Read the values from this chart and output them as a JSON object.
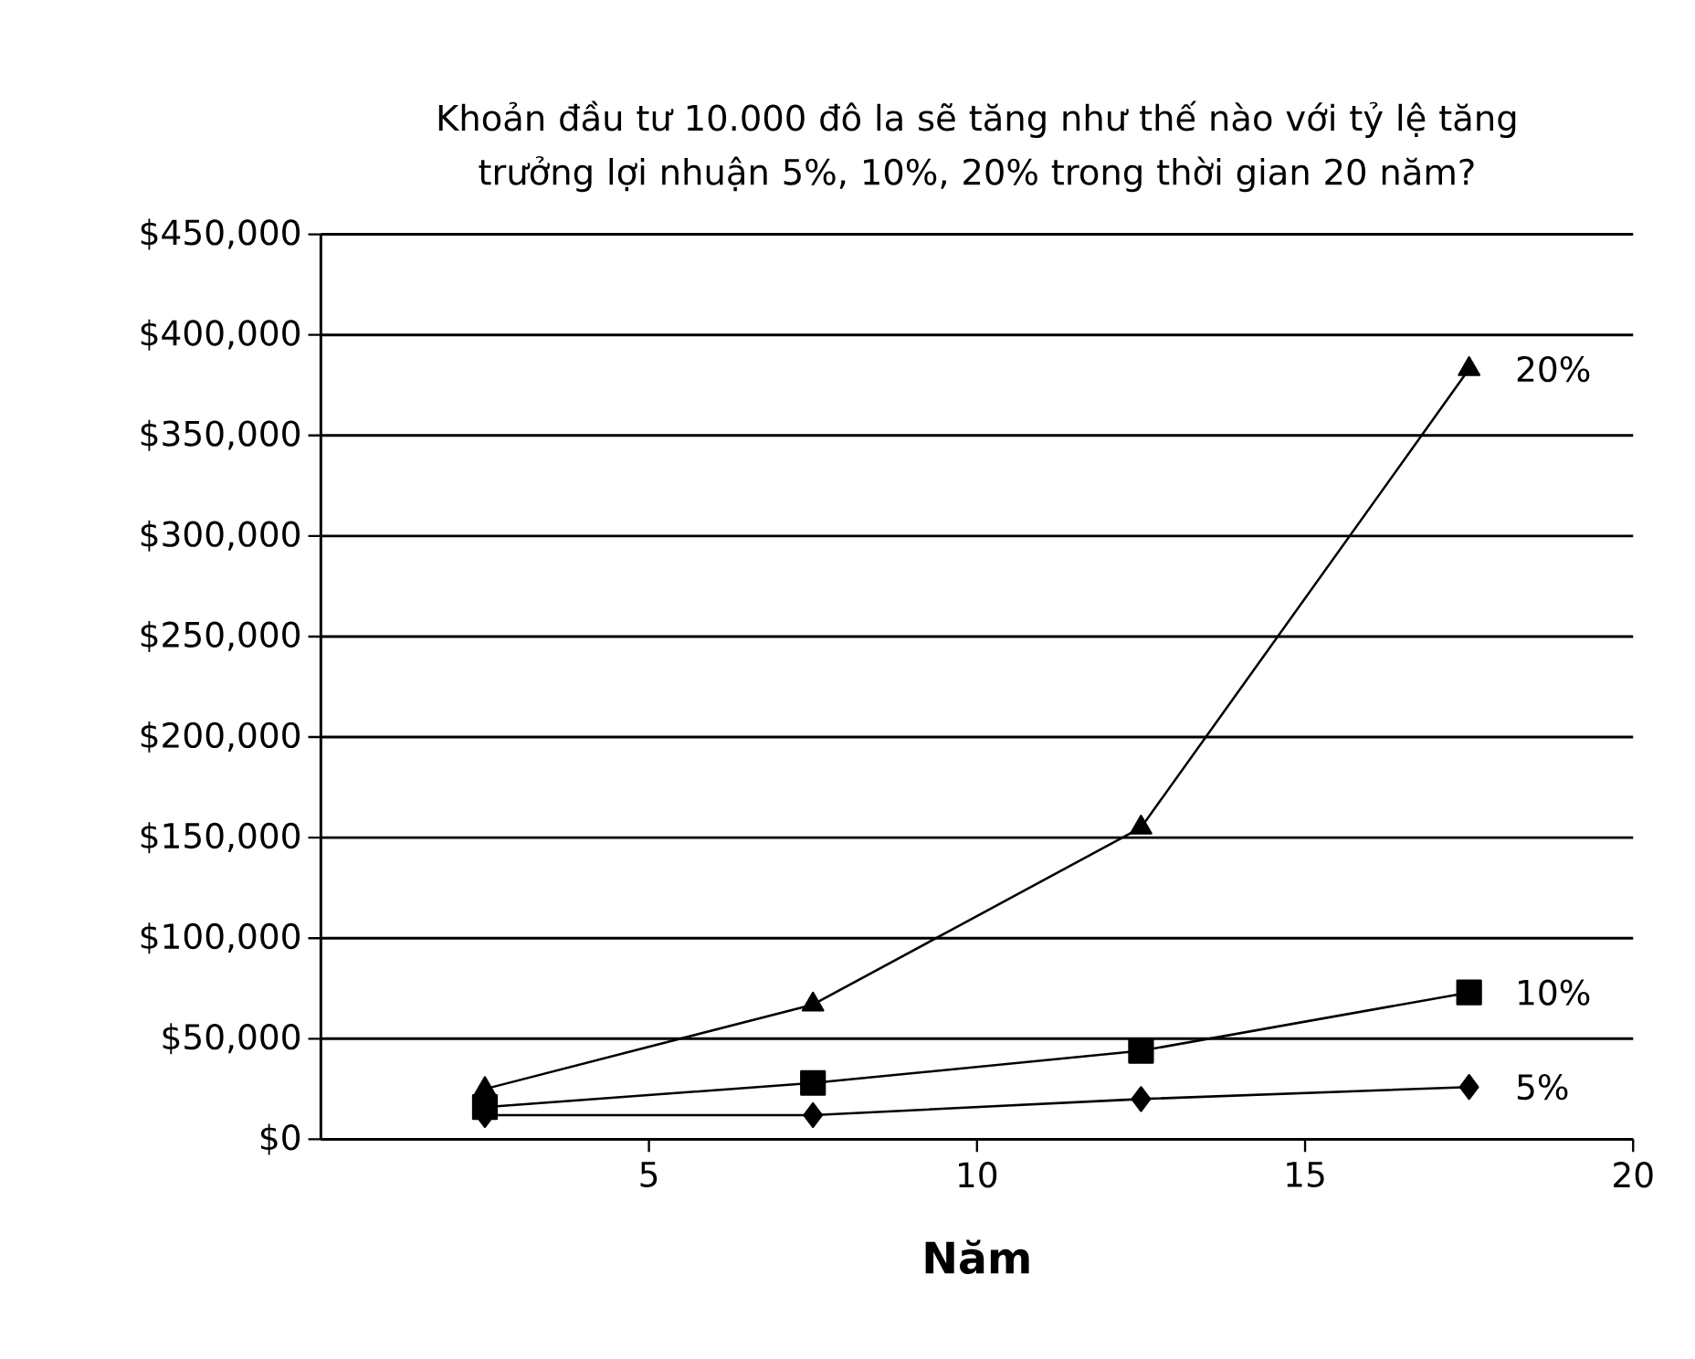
{
  "chart_data": {
    "type": "line",
    "title": "Khoản đầu tư 10.000 đô la sẽ tăng như thế nào với tỷ lệ tăng trưởng lợi nhuận 5%, 10%, 20% trong thời gian 20 năm?",
    "xlabel": "**Năm**",
    "x": [
      2.5,
      7.5,
      12.5,
      17.5
    ],
    "series": [
      {
        "name": "20%",
        "color": "#000000",
        "marker": "triangle",
        "values": [
          25000,
          67000,
          155000,
          383000
        ]
      },
      {
        "name": "10%",
        "color": "#000000",
        "marker": "square",
        "values": [
          16000,
          28000,
          44000,
          73000
        ]
      },
      {
        "name": "5%",
        "color": "#000000",
        "marker": "diamond",
        "values": [
          12000,
          12000,
          20000,
          26000
        ]
      }
    ],
    "xlim": [
      0,
      20
    ],
    "xticks": [
      5,
      10,
      15,
      20
    ],
    "ylim": [
      0,
      450000
    ],
    "yticks": [
      {
        "value": 0,
        "label": "$0"
      },
      {
        "value": 50000,
        "label": "$50,000"
      },
      {
        "value": 100000,
        "label": "$100,000"
      },
      {
        "value": 150000,
        "label": "$150,000"
      },
      {
        "value": 200000,
        "label": "$200,000"
      },
      {
        "value": 250000,
        "label": "$250,000"
      },
      {
        "value": 300000,
        "label": "$300,000"
      },
      {
        "value": 350000,
        "label": "$350,000"
      },
      {
        "value": 400000,
        "label": "$400,000"
      },
      {
        "value": 450000,
        "label": "$450,000"
      }
    ],
    "grid": "y",
    "line_style": "solid"
  }
}
